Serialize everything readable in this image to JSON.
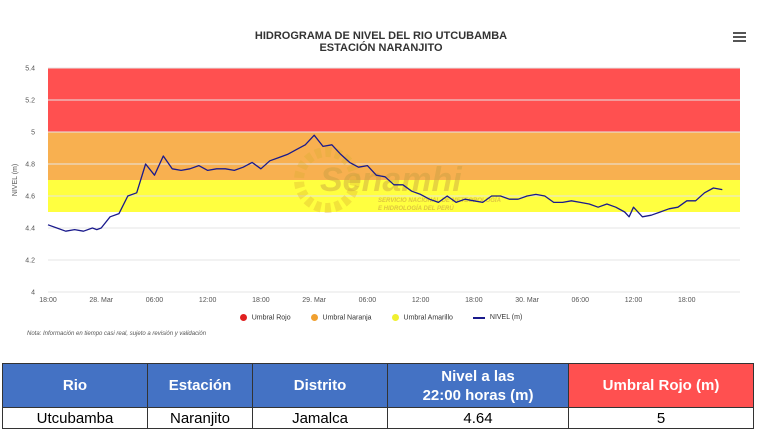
{
  "chart_data": {
    "type": "line",
    "title": "HIDROGRAMA DE NIVEL DEL RIO UTCUBAMBA",
    "subtitle": "ESTACIÓN NARANJITO",
    "ylabel": "NIVEL (m)",
    "ylim": [
      4,
      5.4
    ],
    "y_ticks": [
      "4",
      "4.2",
      "4.4",
      "4.6",
      "4.8",
      "5",
      "5.2",
      "5.4"
    ],
    "x_ticks": [
      "18:00",
      "28. Mar",
      "06:00",
      "12:00",
      "18:00",
      "29. Mar",
      "06:00",
      "12:00",
      "18:00",
      "30. Mar",
      "06:00",
      "12:00",
      "18:00"
    ],
    "x_range_hours": [
      0,
      78
    ],
    "thresholds": [
      {
        "name": "Umbral Rojo",
        "from": 5.0,
        "to": 5.4,
        "color": "#ff5050"
      },
      {
        "name": "Umbral Naranja",
        "from": 4.7,
        "to": 5.0,
        "color": "#f8b050"
      },
      {
        "name": "Umbral Amarillo",
        "from": 4.5,
        "to": 4.7,
        "color": "#ffff40"
      }
    ],
    "series": [
      {
        "name": "NIVEL (m)",
        "color": "#1a1a8c",
        "x": [
          0,
          1,
          2,
          3,
          4,
          5,
          5.5,
          6,
          7,
          8,
          9,
          10,
          11,
          12,
          13,
          14,
          15,
          16,
          17,
          18,
          19,
          20,
          21,
          22,
          23,
          24,
          25,
          26,
          27,
          28,
          29,
          30,
          31,
          32,
          33,
          34,
          35,
          36,
          37,
          38,
          39,
          40,
          41,
          42,
          43,
          44,
          45,
          46,
          47,
          48,
          49,
          50,
          51,
          52,
          53,
          54,
          55,
          56,
          57,
          58,
          59,
          60,
          61,
          62,
          63,
          64,
          65,
          65.5,
          66,
          67,
          68,
          69,
          70,
          71,
          72,
          73,
          74,
          75,
          76
        ],
        "values": [
          4.42,
          4.4,
          4.38,
          4.39,
          4.38,
          4.4,
          4.39,
          4.4,
          4.47,
          4.49,
          4.6,
          4.62,
          4.8,
          4.73,
          4.85,
          4.77,
          4.76,
          4.77,
          4.79,
          4.76,
          4.77,
          4.77,
          4.76,
          4.78,
          4.81,
          4.77,
          4.82,
          4.84,
          4.86,
          4.89,
          4.92,
          4.98,
          4.91,
          4.92,
          4.86,
          4.81,
          4.78,
          4.79,
          4.73,
          4.72,
          4.67,
          4.67,
          4.63,
          4.61,
          4.58,
          4.56,
          4.6,
          4.56,
          4.58,
          4.57,
          4.56,
          4.6,
          4.6,
          4.58,
          4.58,
          4.6,
          4.61,
          4.6,
          4.56,
          4.56,
          4.57,
          4.56,
          4.55,
          4.53,
          4.55,
          4.53,
          4.5,
          4.47,
          4.53,
          4.47,
          4.48,
          4.5,
          4.52,
          4.53,
          4.57,
          4.57,
          4.62,
          4.65,
          4.64
        ]
      }
    ],
    "legend_placement": "bottom",
    "note": "Nota: Información en tiempo casi real, sujeto a revisión y validación",
    "watermark": {
      "name": "Senamhi",
      "line1": "SERVICIO NACIONAL DE METEOROLOGÍA",
      "line2": "E HIDROLOGÍA DEL PERÚ"
    }
  },
  "menu": {
    "icon": "hamburger-menu-icon"
  },
  "table": {
    "headers": [
      "Rio",
      "Estación",
      "Distrito",
      "Nivel a las",
      "22:00 horas (m)",
      "Umbral Rojo (m)"
    ],
    "row": [
      "Utcubamba",
      "Naranjito",
      "Jamalca",
      "4.64",
      "5"
    ]
  }
}
